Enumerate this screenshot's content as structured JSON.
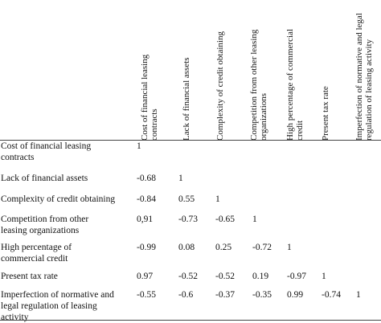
{
  "table": {
    "column_headers": [
      [
        "Cost of financial leasing",
        "contracts"
      ],
      [
        "Lack of financial assets"
      ],
      [
        "Complexity of credit obtaining"
      ],
      [
        "Competition from other leasing",
        "organizations"
      ],
      [
        "High percentage of commercial",
        "credit"
      ],
      [
        "Present tax rate"
      ],
      [
        "Imperfection of normative and legal",
        "regulation of leasing activity"
      ]
    ],
    "rows": [
      {
        "label": [
          "Cost of financial leasing",
          "contracts"
        ],
        "values": [
          "1"
        ]
      },
      {
        "label": [
          "Lack of financial assets"
        ],
        "values": [
          "-0.68",
          "1"
        ]
      },
      {
        "label": [
          "Complexity of credit obtaining"
        ],
        "values": [
          "-0.84",
          "0.55",
          "1"
        ]
      },
      {
        "label": [
          "Competition from other",
          "leasing organizations"
        ],
        "values": [
          "0,91",
          "-0.73",
          "-0.65",
          "1"
        ]
      },
      {
        "label": [
          "High percentage of",
          "commercial credit"
        ],
        "values": [
          "-0.99",
          "0.08",
          "0.25",
          "-0.72",
          "1"
        ]
      },
      {
        "label": [
          "Present tax rate"
        ],
        "values": [
          "0.97",
          "-0.52",
          "-0.52",
          "0.19",
          "-0.97",
          "1"
        ]
      },
      {
        "label": [
          "Imperfection of normative and",
          "legal regulation of leasing",
          "activity"
        ],
        "values": [
          "-0.55",
          "-0.6",
          "-0.37",
          "-0.35",
          "0.99",
          "-0.74",
          "1"
        ]
      }
    ]
  }
}
